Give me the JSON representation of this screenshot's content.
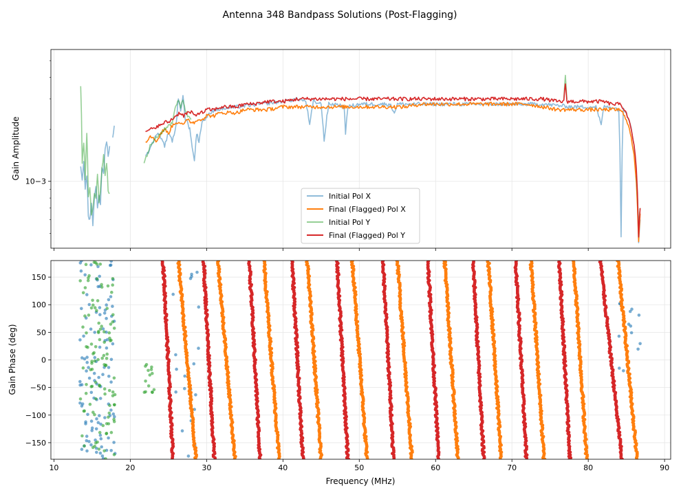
{
  "figure": {
    "title": "Antenna 348 Bandpass Solutions (Post-Flagging)"
  },
  "colors": {
    "initial_x": "#1f77b4",
    "final_x": "#ff7f0e",
    "initial_y": "#2ca02c",
    "final_y": "#d62728",
    "grid": "#e6e6e6"
  },
  "chart_data": [
    {
      "type": "line",
      "panel": "top",
      "title": "Antenna 348 Bandpass Solutions (Post-Flagging)",
      "xlabel": "",
      "ylabel": "Gain Amplitude",
      "yscale": "log",
      "xlim": [
        9.6,
        90.8
      ],
      "ylim": [
        0.00041,
        0.0058
      ],
      "ytick_labels": [
        {
          "value": 0.001,
          "label": "10−3"
        }
      ],
      "legend_location": "lower-center",
      "series": [
        {
          "name": "Initial Pol X",
          "key": "initial_x",
          "alpha": 0.5,
          "segments": [
            {
              "x": [
                13.5,
                13.7,
                13.9,
                14.1,
                14.3,
                14.5,
                14.7,
                14.9,
                15.1,
                15.3,
                15.5,
                15.7,
                15.9,
                16.1,
                16.3,
                16.5,
                16.7,
                16.9,
                17.1,
                17.3
              ],
              "y": [
                0.0012,
                0.001,
                0.0013,
                0.0009,
                0.0011,
                0.00062,
                0.0006,
                0.00075,
                0.00056,
                0.00078,
                0.00095,
                0.0007,
                0.00085,
                0.00072,
                0.0012,
                0.0011,
                0.0015,
                0.0017,
                0.0014,
                0.0016
              ]
            },
            {
              "x": [
                17.7,
                17.9
              ],
              "y": [
                0.0018,
                0.0021
              ]
            },
            {
              "x": [
                22.0,
                22.5,
                23.0,
                23.5,
                24.0,
                24.5,
                25.0,
                25.5,
                26.0,
                26.3,
                26.6,
                26.9,
                27.2,
                27.5,
                27.8,
                28.1,
                28.4,
                28.7,
                29.0,
                29.4,
                29.8,
                30.2,
                30.6,
                31.0
              ],
              "y": [
                0.0014,
                0.0015,
                0.0017,
                0.0019,
                0.0018,
                0.0016,
                0.0019,
                0.0017,
                0.0021,
                0.003,
                0.0026,
                0.0031,
                0.0023,
                0.0022,
                0.002,
                0.0016,
                0.0013,
                0.0019,
                0.0017,
                0.0022,
                0.0023,
                0.0024,
                0.0025,
                0.0026
              ]
            },
            {
              "x": [
                31,
                34,
                37,
                40,
                42,
                43,
                43.5,
                44,
                45,
                45.4,
                46,
                47,
                48,
                48.2,
                48.5,
                50,
                52,
                54,
                54.6,
                55,
                58,
                62,
                66,
                70,
                74,
                78,
                81,
                81.7,
                82,
                83,
                84,
                84.3,
                84.6,
                85,
                85.5,
                86,
                86.3,
                86.6,
                86.8
              ],
              "y": [
                0.0026,
                0.0027,
                0.0028,
                0.0029,
                0.003,
                0.0029,
                0.0021,
                0.0029,
                0.0028,
                0.0017,
                0.0028,
                0.0028,
                0.0027,
                0.0019,
                0.0027,
                0.0028,
                0.0028,
                0.0028,
                0.0025,
                0.0028,
                0.0028,
                0.0028,
                0.0028,
                0.0028,
                0.0028,
                0.0027,
                0.0027,
                0.0021,
                0.0027,
                0.0027,
                0.0026,
                0.00048,
                0.0026,
                0.0025,
                0.0022,
                0.0016,
                0.0011,
                0.00045,
                0.0006
              ]
            }
          ]
        },
        {
          "name": "Final (Flagged) Pol X",
          "key": "final_x",
          "alpha": 1.0,
          "segments": [
            {
              "x": [
                22.0,
                22.5,
                23.0,
                23.5,
                24.0,
                24.5,
                25.0,
                25.5,
                26.0,
                26.5,
                27.0,
                27.5,
                28.0,
                28.5,
                29.0,
                29.5,
                30.0,
                31,
                32,
                33,
                34,
                35,
                36,
                38,
                40,
                42,
                44,
                46,
                48,
                50,
                52,
                54,
                56,
                58,
                60,
                62,
                64,
                66,
                68,
                70,
                72,
                74,
                76,
                78,
                80,
                82,
                84,
                84.5,
                85,
                85.5,
                86,
                86.3,
                86.6,
                86.8
              ],
              "y": [
                0.0017,
                0.0018,
                0.0018,
                0.0017,
                0.0019,
                0.002,
                0.0019,
                0.0021,
                0.0022,
                0.0022,
                0.0021,
                0.0023,
                0.0022,
                0.0022,
                0.0023,
                0.0023,
                0.0024,
                0.0024,
                0.0025,
                0.0025,
                0.0025,
                0.0026,
                0.0026,
                0.0026,
                0.0027,
                0.0027,
                0.0027,
                0.0027,
                0.0027,
                0.0027,
                0.0027,
                0.0027,
                0.0027,
                0.0028,
                0.0028,
                0.0028,
                0.0028,
                0.0028,
                0.0028,
                0.0028,
                0.0028,
                0.0027,
                0.0026,
                0.0026,
                0.0026,
                0.0026,
                0.0026,
                0.0025,
                0.0023,
                0.0019,
                0.0014,
                0.001,
                0.00045,
                0.00065
              ]
            }
          ]
        },
        {
          "name": "Initial Pol Y",
          "key": "initial_y",
          "alpha": 0.5,
          "segments": [
            {
              "x": [
                13.5,
                13.7,
                13.9,
                14.1,
                14.3,
                14.5,
                14.7,
                14.9,
                15.1,
                15.3,
                15.5,
                15.7,
                15.9,
                16.1,
                16.3,
                16.5,
                16.7,
                16.9,
                17.1,
                17.3
              ],
              "y": [
                0.0036,
                0.0013,
                0.0017,
                0.001,
                0.0019,
                0.0008,
                0.0009,
                0.00065,
                0.0007,
                0.00085,
                0.0008,
                0.0011,
                0.00075,
                0.0009,
                0.0012,
                0.0014,
                0.0011,
                0.0013,
                0.0009,
                0.00085
              ]
            },
            {
              "x": [
                21.8,
                22.2,
                22.6,
                23.0,
                23.5,
                24.0,
                24.5,
                25.0,
                25.5,
                26.0,
                26.3,
                26.6,
                26.9,
                27.2,
                27.5,
                28.0
              ],
              "y": [
                0.0013,
                0.0014,
                0.0016,
                0.0017,
                0.0018,
                0.0019,
                0.002,
                0.0021,
                0.0022,
                0.0028,
                0.0029,
                0.0027,
                0.003,
                0.0026,
                0.0024,
                0.0023
              ]
            },
            {
              "x": [
                76.8,
                77.0,
                77.2
              ],
              "y": [
                0.003,
                0.0042,
                0.003
              ]
            },
            {
              "x": [
                86.3,
                86.6,
                86.8
              ],
              "y": [
                0.0011,
                0.00055,
                0.0007
              ]
            }
          ]
        },
        {
          "name": "Final (Flagged) Pol Y",
          "key": "final_y",
          "alpha": 1.0,
          "segments": [
            {
              "x": [
                22.0,
                22.5,
                23.0,
                23.5,
                24.0,
                24.5,
                25.0,
                25.5,
                26.0,
                26.5,
                27.0,
                27.5,
                28.0,
                28.5,
                29.0,
                29.5,
                30.0,
                31,
                32,
                33,
                34,
                35,
                36,
                38,
                40,
                42,
                44,
                46,
                48,
                50,
                52,
                54,
                56,
                58,
                60,
                62,
                64,
                66,
                68,
                70,
                72,
                74,
                76,
                76.8,
                77.0,
                77.2,
                78,
                80,
                82,
                83,
                84,
                84.5,
                85,
                85.5,
                86,
                86.3,
                86.6,
                86.8
              ],
              "y": [
                0.0019,
                0.002,
                0.002,
                0.0021,
                0.0021,
                0.0022,
                0.0022,
                0.0023,
                0.0024,
                0.0025,
                0.0024,
                0.0025,
                0.0025,
                0.0024,
                0.0025,
                0.0025,
                0.0026,
                0.0026,
                0.0027,
                0.0027,
                0.0027,
                0.0028,
                0.0028,
                0.0029,
                0.0029,
                0.003,
                0.003,
                0.003,
                0.003,
                0.003,
                0.003,
                0.003,
                0.003,
                0.003,
                0.003,
                0.003,
                0.003,
                0.003,
                0.003,
                0.003,
                0.003,
                0.003,
                0.0029,
                0.0029,
                0.0037,
                0.0029,
                0.0029,
                0.0029,
                0.0029,
                0.0028,
                0.0028,
                0.0027,
                0.0025,
                0.0021,
                0.0016,
                0.0012,
                0.00048,
                0.0007
              ]
            }
          ]
        }
      ]
    },
    {
      "type": "scatter",
      "panel": "bottom",
      "xlabel": "Frequency (MHz)",
      "ylabel": "Gain Phase (deg)",
      "xlim": [
        9.6,
        90.8
      ],
      "ylim": [
        -180,
        180
      ],
      "xticks": [
        10,
        20,
        30,
        40,
        50,
        60,
        70,
        80,
        90
      ],
      "yticks": [
        -150,
        -100,
        -50,
        0,
        50,
        100,
        150
      ],
      "phase_wraps": [
        {
          "key": "final_y",
          "x_at_top": [
            24.3,
            29.6,
            35.6,
            41.2,
            47.1,
            53.1,
            59.0,
            64.9,
            70.5,
            76.2,
            81.6
          ],
          "x_at_bottom": [
            25.6,
            31.0,
            37.0,
            42.6,
            48.5,
            54.5,
            60.4,
            66.3,
            71.9,
            77.6,
            84.4
          ]
        },
        {
          "key": "final_x",
          "x_at_top": [
            26.3,
            31.5,
            37.5,
            43.2,
            49.1,
            55.0,
            61.2,
            66.9,
            72.5,
            78.1,
            83.9
          ],
          "x_at_bottom": [
            28.6,
            33.7,
            39.5,
            45.0,
            51.0,
            56.9,
            62.9,
            68.6,
            74.2,
            79.8,
            86.4
          ]
        }
      ],
      "scatter_clusters": [
        {
          "key": "initial_x",
          "x_range": [
            13.4,
            18.0
          ],
          "y_range": [
            -180,
            180
          ],
          "count": 110
        },
        {
          "key": "initial_y",
          "x_range": [
            13.4,
            18.0
          ],
          "y_range": [
            -180,
            180
          ],
          "count": 110
        },
        {
          "key": "initial_y",
          "x_range": [
            21.8,
            23.2
          ],
          "y_range": [
            -60,
            -5
          ],
          "count": 14
        },
        {
          "key": "initial_x",
          "x_range": [
            25.5,
            29.0
          ],
          "y_range": [
            -180,
            160
          ],
          "count": 22
        },
        {
          "key": "initial_x",
          "x_range": [
            84.0,
            86.8
          ],
          "y_range": [
            -40,
            105
          ],
          "count": 14
        }
      ]
    }
  ],
  "legend": {
    "items": [
      {
        "label": "Initial Pol X",
        "key": "initial_x"
      },
      {
        "label": "Final (Flagged) Pol X",
        "key": "final_x"
      },
      {
        "label": "Initial Pol Y",
        "key": "initial_y"
      },
      {
        "label": "Final (Flagged) Pol Y",
        "key": "final_y"
      }
    ]
  }
}
